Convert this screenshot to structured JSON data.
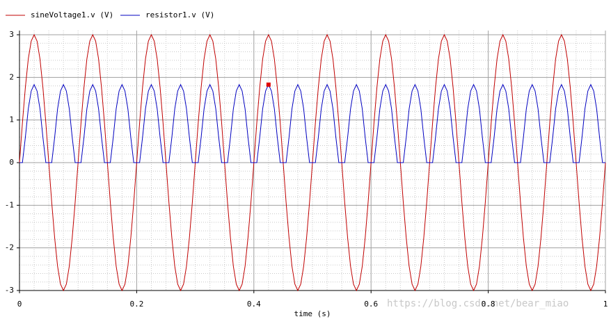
{
  "chart_data": {
    "type": "line",
    "x_label": "time (s)",
    "watermark": "https://blog.csdn.net/bear_miao",
    "xlim": [
      0,
      1
    ],
    "xticks": [
      0,
      0.2,
      0.4,
      0.6,
      0.8,
      1
    ],
    "ylim": [
      -3,
      3
    ],
    "yticks": [
      -3,
      -2,
      -1,
      0,
      1,
      2,
      3
    ],
    "grid": true,
    "legend": "top-left",
    "marker": {
      "x": 0.425,
      "y": 1.83,
      "color": "#e00000"
    },
    "x": [
      0,
      0.005,
      0.01,
      0.015,
      0.02,
      0.025,
      0.03,
      0.035,
      0.04,
      0.045,
      0.05,
      0.055,
      0.06,
      0.065,
      0.07,
      0.075,
      0.08,
      0.085,
      0.09,
      0.095,
      0.1,
      0.105,
      0.11,
      0.115,
      0.12,
      0.125,
      0.13,
      0.135,
      0.14,
      0.145,
      0.15,
      0.155,
      0.16,
      0.165,
      0.17,
      0.175,
      0.18,
      0.185,
      0.19,
      0.195,
      0.2,
      0.205,
      0.21,
      0.215,
      0.22,
      0.225,
      0.23,
      0.235,
      0.24,
      0.245,
      0.25,
      0.255,
      0.26,
      0.265,
      0.27,
      0.275,
      0.28,
      0.285,
      0.29,
      0.295,
      0.3,
      0.305,
      0.31,
      0.315,
      0.32,
      0.325,
      0.33,
      0.335,
      0.34,
      0.345,
      0.35,
      0.355,
      0.36,
      0.365,
      0.37,
      0.375,
      0.38,
      0.385,
      0.39,
      0.395,
      0.4,
      0.405,
      0.41,
      0.415,
      0.42,
      0.425,
      0.43,
      0.435,
      0.44,
      0.445,
      0.45,
      0.455,
      0.46,
      0.465,
      0.47,
      0.475,
      0.48,
      0.485,
      0.49,
      0.495,
      0.5,
      0.505,
      0.51,
      0.515,
      0.52,
      0.525,
      0.53,
      0.535,
      0.54,
      0.545,
      0.55,
      0.555,
      0.56,
      0.565,
      0.57,
      0.575,
      0.58,
      0.585,
      0.59,
      0.595,
      0.6,
      0.605,
      0.61,
      0.615,
      0.62,
      0.625,
      0.63,
      0.635,
      0.64,
      0.645,
      0.65,
      0.655,
      0.66,
      0.665,
      0.67,
      0.675,
      0.68,
      0.685,
      0.69,
      0.695,
      0.7,
      0.705,
      0.71,
      0.715,
      0.72,
      0.725,
      0.73,
      0.735,
      0.74,
      0.745,
      0.75,
      0.755,
      0.76,
      0.765,
      0.77,
      0.775,
      0.78,
      0.785,
      0.79,
      0.795,
      0.8,
      0.805,
      0.81,
      0.815,
      0.82,
      0.825,
      0.83,
      0.835,
      0.84,
      0.845,
      0.85,
      0.855,
      0.86,
      0.865,
      0.87,
      0.875,
      0.88,
      0.885,
      0.89,
      0.895,
      0.9,
      0.905,
      0.91,
      0.915,
      0.92,
      0.925,
      0.93,
      0.935,
      0.94,
      0.945,
      0.95,
      0.955,
      0.96,
      0.965,
      0.97,
      0.975,
      0.98,
      0.985,
      0.99,
      0.995,
      1
    ],
    "series": [
      {
        "name": "sineVoltage1.v (V)",
        "color": "#c00000",
        "values": [
          0,
          0.93,
          1.76,
          2.43,
          2.85,
          3,
          2.85,
          2.43,
          1.76,
          0.93,
          0,
          -0.93,
          -1.76,
          -2.43,
          -2.85,
          -3,
          -2.85,
          -2.43,
          -1.76,
          -0.93,
          0,
          0.93,
          1.76,
          2.43,
          2.85,
          3,
          2.85,
          2.43,
          1.76,
          0.93,
          0,
          -0.93,
          -1.76,
          -2.43,
          -2.85,
          -3,
          -2.85,
          -2.43,
          -1.76,
          -0.93,
          0,
          0.93,
          1.76,
          2.43,
          2.85,
          3,
          2.85,
          2.43,
          1.76,
          0.93,
          0,
          -0.93,
          -1.76,
          -2.43,
          -2.85,
          -3,
          -2.85,
          -2.43,
          -1.76,
          -0.93,
          0,
          0.93,
          1.76,
          2.43,
          2.85,
          3,
          2.85,
          2.43,
          1.76,
          0.93,
          0,
          -0.93,
          -1.76,
          -2.43,
          -2.85,
          -3,
          -2.85,
          -2.43,
          -1.76,
          -0.93,
          0,
          0.93,
          1.76,
          2.43,
          2.85,
          3,
          2.85,
          2.43,
          1.76,
          0.93,
          0,
          -0.93,
          -1.76,
          -2.43,
          -2.85,
          -3,
          -2.85,
          -2.43,
          -1.76,
          -0.93,
          0,
          0.93,
          1.76,
          2.43,
          2.85,
          3,
          2.85,
          2.43,
          1.76,
          0.93,
          0,
          -0.93,
          -1.76,
          -2.43,
          -2.85,
          -3,
          -2.85,
          -2.43,
          -1.76,
          -0.93,
          0,
          0.93,
          1.76,
          2.43,
          2.85,
          3,
          2.85,
          2.43,
          1.76,
          0.93,
          0,
          -0.93,
          -1.76,
          -2.43,
          -2.85,
          -3,
          -2.85,
          -2.43,
          -1.76,
          -0.93,
          0,
          0.93,
          1.76,
          2.43,
          2.85,
          3,
          2.85,
          2.43,
          1.76,
          0.93,
          0,
          -0.93,
          -1.76,
          -2.43,
          -2.85,
          -3,
          -2.85,
          -2.43,
          -1.76,
          -0.93,
          0,
          0.93,
          1.76,
          2.43,
          2.85,
          3,
          2.85,
          2.43,
          1.76,
          0.93,
          0,
          -0.93,
          -1.76,
          -2.43,
          -2.85,
          -3,
          -2.85,
          -2.43,
          -1.76,
          -0.93,
          0,
          0.93,
          1.76,
          2.43,
          2.85,
          3,
          2.85,
          2.43,
          1.76,
          0.93,
          0,
          -0.93,
          -1.76,
          -2.43,
          -2.85,
          -3,
          -2.85,
          -2.43,
          -1.76,
          -0.93,
          0
        ]
      },
      {
        "name": "resistor1.v (V)",
        "color": "#0000c0",
        "values": [
          0,
          0,
          0.59,
          1.26,
          1.68,
          1.83,
          1.68,
          1.26,
          0.59,
          0,
          0,
          0,
          0.59,
          1.26,
          1.68,
          1.83,
          1.68,
          1.26,
          0.59,
          0,
          0,
          0,
          0.59,
          1.26,
          1.68,
          1.83,
          1.68,
          1.26,
          0.59,
          0,
          0,
          0,
          0.59,
          1.26,
          1.68,
          1.83,
          1.68,
          1.26,
          0.59,
          0,
          0,
          0,
          0.59,
          1.26,
          1.68,
          1.83,
          1.68,
          1.26,
          0.59,
          0,
          0,
          0,
          0.59,
          1.26,
          1.68,
          1.83,
          1.68,
          1.26,
          0.59,
          0,
          0,
          0,
          0.59,
          1.26,
          1.68,
          1.83,
          1.68,
          1.26,
          0.59,
          0,
          0,
          0,
          0.59,
          1.26,
          1.68,
          1.83,
          1.68,
          1.26,
          0.59,
          0,
          0,
          0,
          0.59,
          1.26,
          1.68,
          1.83,
          1.68,
          1.26,
          0.59,
          0,
          0,
          0,
          0.59,
          1.26,
          1.68,
          1.83,
          1.68,
          1.26,
          0.59,
          0,
          0,
          0,
          0.59,
          1.26,
          1.68,
          1.83,
          1.68,
          1.26,
          0.59,
          0,
          0,
          0,
          0.59,
          1.26,
          1.68,
          1.83,
          1.68,
          1.26,
          0.59,
          0,
          0,
          0,
          0.59,
          1.26,
          1.68,
          1.83,
          1.68,
          1.26,
          0.59,
          0,
          0,
          0,
          0.59,
          1.26,
          1.68,
          1.83,
          1.68,
          1.26,
          0.59,
          0,
          0,
          0,
          0.59,
          1.26,
          1.68,
          1.83,
          1.68,
          1.26,
          0.59,
          0,
          0,
          0,
          0.59,
          1.26,
          1.68,
          1.83,
          1.68,
          1.26,
          0.59,
          0,
          0,
          0,
          0.59,
          1.26,
          1.68,
          1.83,
          1.68,
          1.26,
          0.59,
          0,
          0,
          0,
          0.59,
          1.26,
          1.68,
          1.83,
          1.68,
          1.26,
          0.59,
          0,
          0,
          0,
          0.59,
          1.26,
          1.68,
          1.83,
          1.68,
          1.26,
          0.59,
          0,
          0,
          0,
          0.59,
          1.26,
          1.68,
          1.83,
          1.68,
          1.26,
          0.59,
          0,
          0
        ]
      }
    ]
  }
}
